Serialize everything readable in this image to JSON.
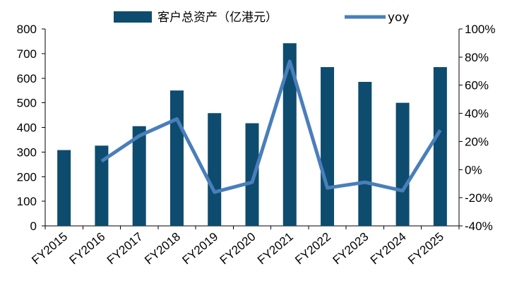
{
  "chart_data": {
    "type": "bar+line",
    "categories": [
      "FY2015",
      "FY2016",
      "FY2017",
      "FY2018",
      "FY2019",
      "FY2020",
      "FY2021",
      "FY2022",
      "FY2023",
      "FY2024",
      "FY2025"
    ],
    "series": [
      {
        "name": "客户总资产（亿港元）",
        "type": "bar",
        "axis": "left",
        "color": "#0d4c6e",
        "values": [
          308,
          326,
          405,
          550,
          458,
          417,
          742,
          645,
          585,
          500,
          645
        ]
      },
      {
        "name": "yoy",
        "type": "line",
        "axis": "right",
        "color": "#4a7ebb",
        "values": [
          null,
          6,
          24,
          36,
          -16,
          -9,
          77,
          -13,
          -9,
          -15,
          28
        ]
      }
    ],
    "y_left": {
      "min": 0,
      "max": 800,
      "step": 100,
      "tick_labels": [
        "0",
        "100",
        "200",
        "300",
        "400",
        "500",
        "600",
        "700",
        "800"
      ]
    },
    "y_right": {
      "min": -40,
      "max": 100,
      "step": 20,
      "tick_labels": [
        "-40%",
        "-20%",
        "0%",
        "20%",
        "40%",
        "60%",
        "80%",
        "100%"
      ]
    },
    "legend": {
      "position": "top-center"
    },
    "grid": false
  }
}
